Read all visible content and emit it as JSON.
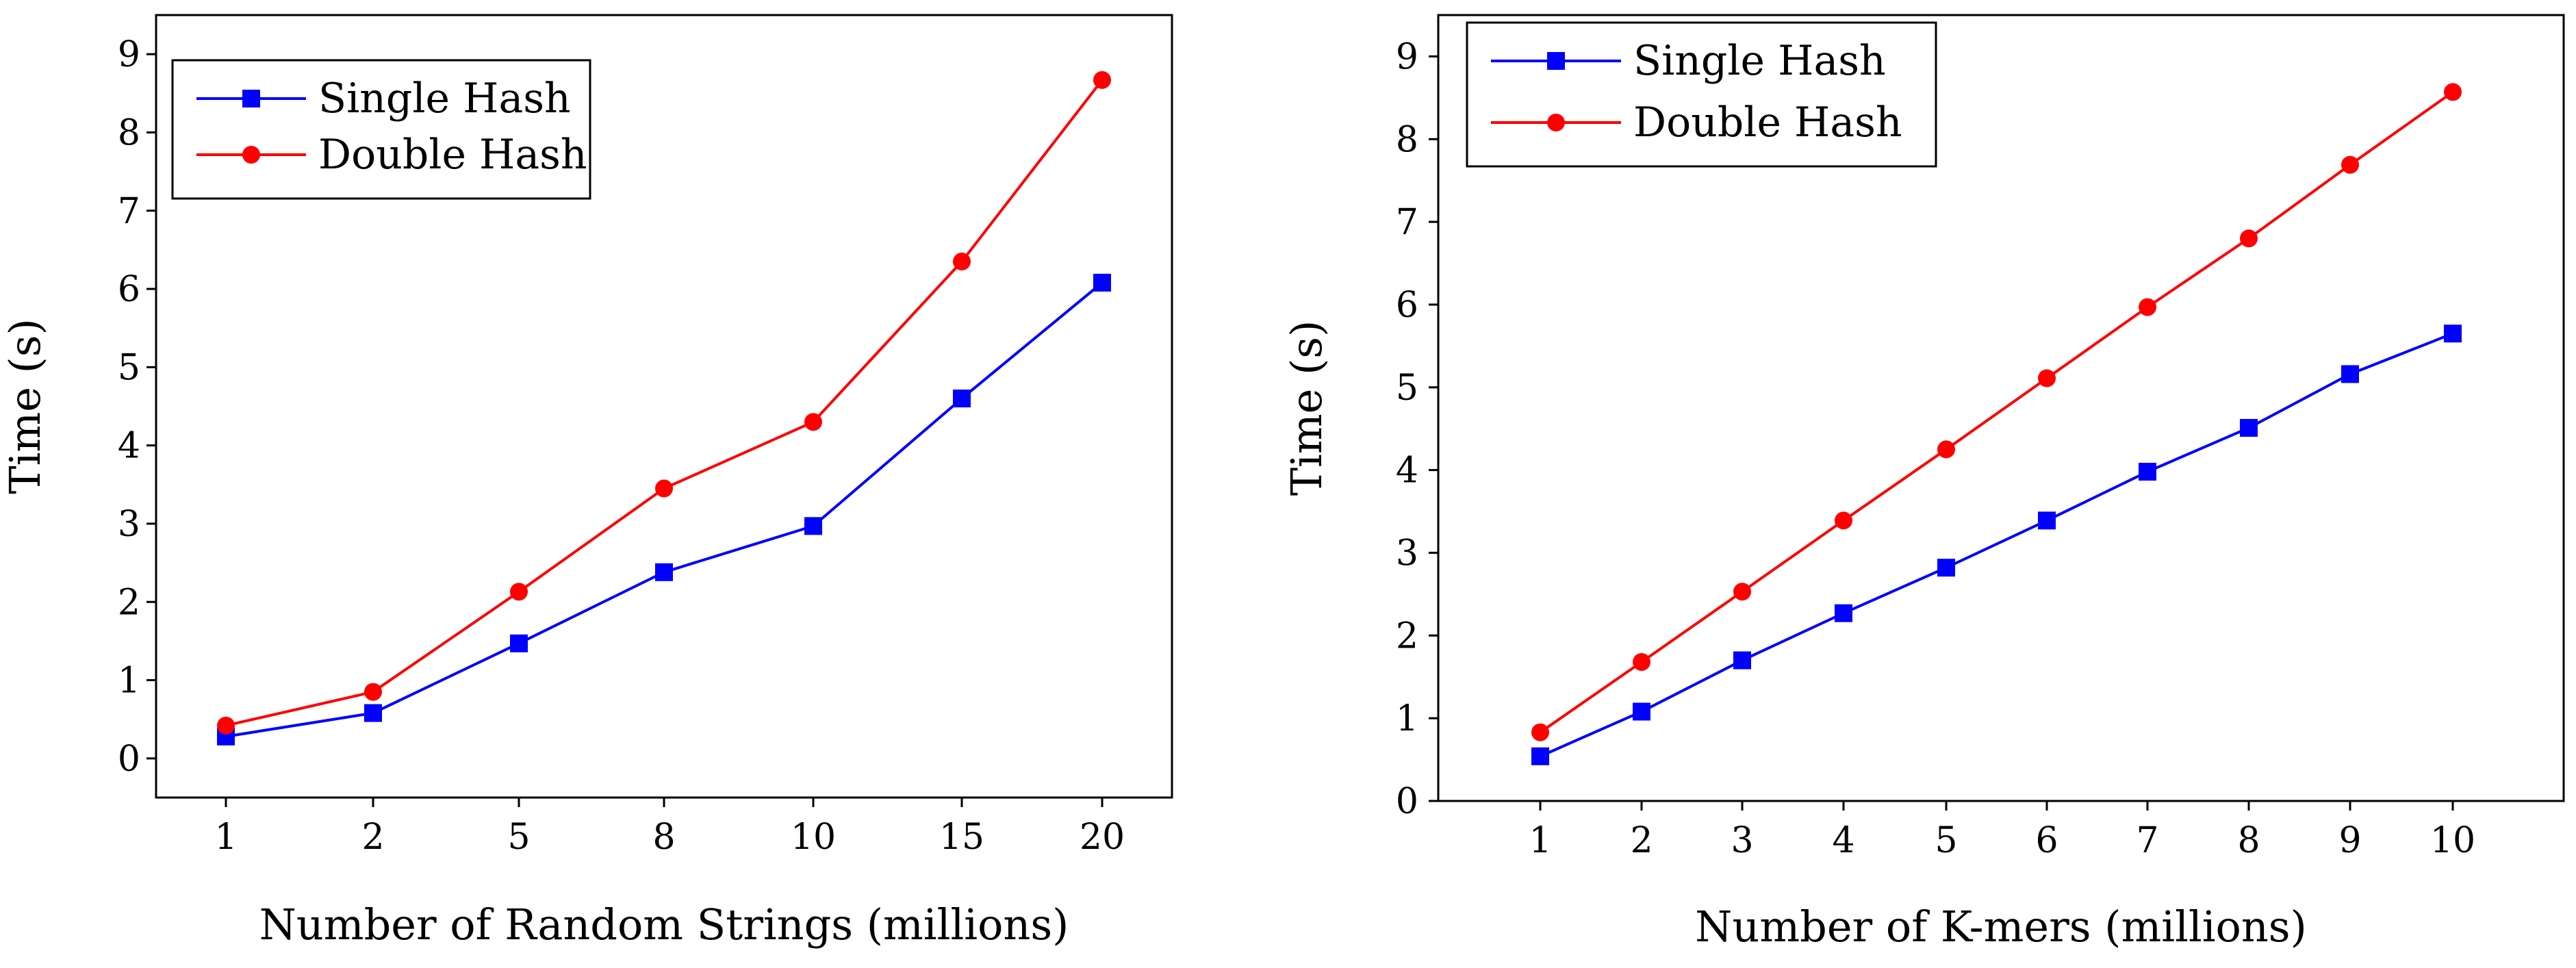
{
  "chart_data": [
    {
      "type": "line",
      "categories": [
        "1",
        "2",
        "5",
        "8",
        "10",
        "15",
        "20"
      ],
      "xlabel": "Number of Random Strings (millions)",
      "ylabel": "Time (s)",
      "ylim": [
        -0.5,
        9.5
      ],
      "yticks": [
        "0",
        "1",
        "2",
        "3",
        "4",
        "5",
        "6",
        "7",
        "8",
        "9"
      ],
      "grid": false,
      "legend_position": "top-left",
      "series": [
        {
          "name": "Single Hash",
          "color": "#0000ff",
          "marker": "square",
          "values": [
            0.28,
            0.58,
            1.47,
            2.38,
            2.97,
            4.6,
            6.08
          ]
        },
        {
          "name": "Double Hash",
          "color": "#ff0000",
          "marker": "circle",
          "values": [
            0.42,
            0.85,
            2.13,
            3.45,
            4.3,
            6.35,
            8.67
          ]
        }
      ]
    },
    {
      "type": "line",
      "categories": [
        "1",
        "2",
        "3",
        "4",
        "5",
        "6",
        "7",
        "8",
        "9",
        "10"
      ],
      "xlabel": "Number of K-mers (millions)",
      "ylabel": "Time (s)",
      "ylim": [
        0,
        9.5
      ],
      "yticks": [
        "0",
        "1",
        "2",
        "3",
        "4",
        "5",
        "6",
        "7",
        "8",
        "9"
      ],
      "grid": false,
      "legend_position": "top-left",
      "series": [
        {
          "name": "Single Hash",
          "color": "#0000ff",
          "marker": "square",
          "values": [
            0.54,
            1.08,
            1.7,
            2.27,
            2.82,
            3.39,
            3.98,
            4.51,
            5.16,
            5.65
          ]
        },
        {
          "name": "Double Hash",
          "color": "#ff0000",
          "marker": "circle",
          "values": [
            0.83,
            1.68,
            2.53,
            3.39,
            4.25,
            5.11,
            5.97,
            6.8,
            7.69,
            8.57
          ]
        }
      ]
    }
  ]
}
